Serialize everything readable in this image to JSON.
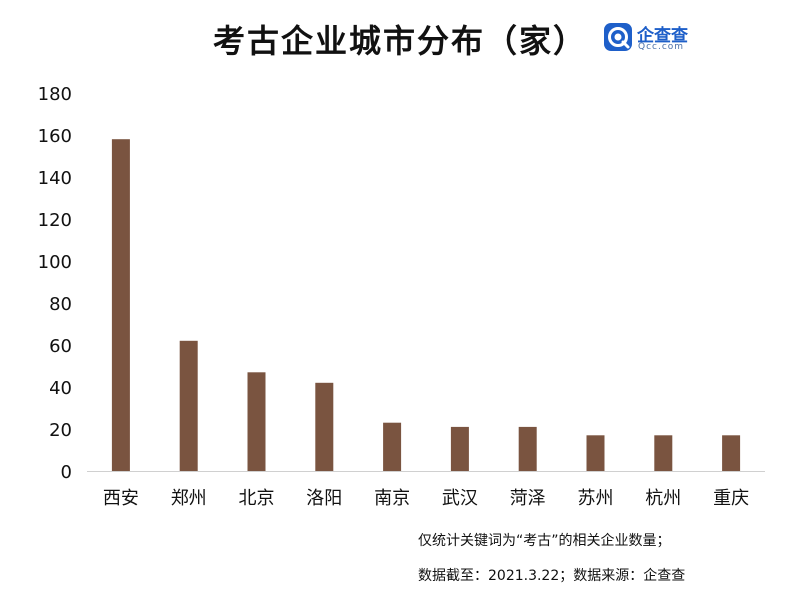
{
  "title": "考古企业城市分布（家）",
  "logo": {
    "name": "企查查",
    "domain": "Qcc.com",
    "color": "#1e5fc9"
  },
  "notes": [
    "仅统计关键词为“考古”的相关企业数量；",
    "数据截至：2021.3.22；数据来源：企查查"
  ],
  "chart_data": {
    "type": "bar",
    "title": "考古企业城市分布（家）",
    "xlabel": "",
    "ylabel": "",
    "categories": [
      "西安",
      "郑州",
      "北京",
      "洛阳",
      "南京",
      "武汉",
      "菏泽",
      "苏州",
      "杭州",
      "重庆"
    ],
    "values": [
      158,
      62,
      47,
      42,
      23,
      21,
      21,
      17,
      17,
      17
    ],
    "ylim": [
      0,
      180
    ],
    "yticks": [
      0,
      20,
      40,
      60,
      80,
      100,
      120,
      140,
      160,
      180
    ],
    "grid": false,
    "legend": "none",
    "bar_color": "#7a5440",
    "axis_color": "#d0d0d0"
  }
}
